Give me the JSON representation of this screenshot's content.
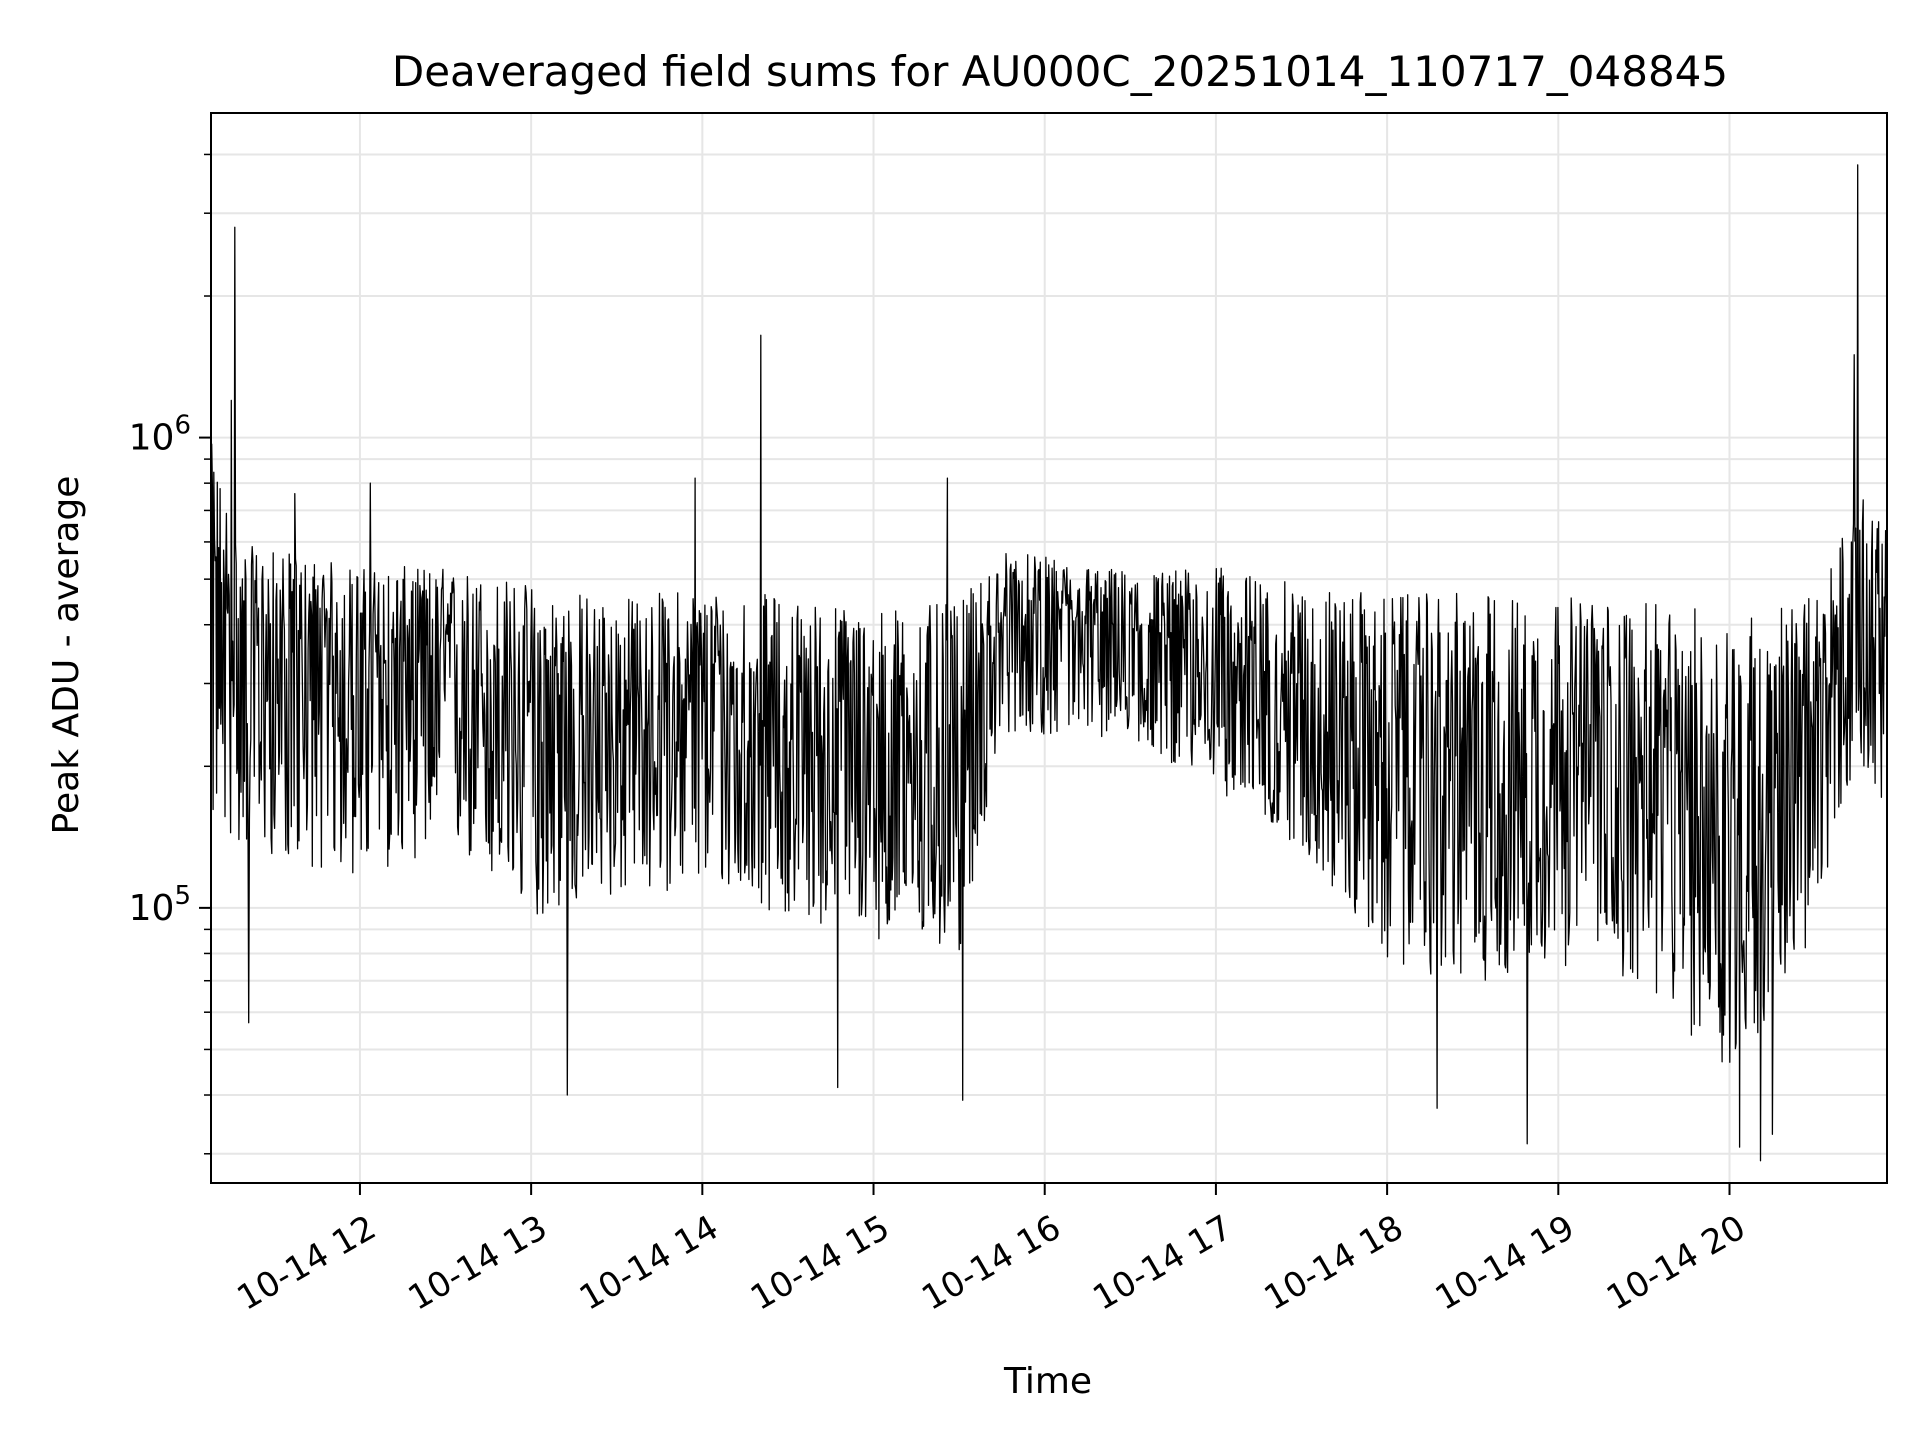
{
  "chart_data": {
    "type": "line",
    "title": "Deaveraged field sums for AU000C_20251014_110717_048845",
    "xlabel": "Time",
    "ylabel": "Peak ADU - average",
    "yscale": "log",
    "ylim": [
      26000,
      4900000
    ],
    "xlim_hours": [
      11.13,
      20.92
    ],
    "grid": true,
    "line_color": "#000000",
    "y_major_ticks": [
      {
        "value": 100000,
        "base": "10",
        "exp": "5"
      },
      {
        "value": 1000000,
        "base": "10",
        "exp": "6"
      }
    ],
    "x_ticks": [
      {
        "value": 12,
        "label": "10-14 12"
      },
      {
        "value": 13,
        "label": "10-14 13"
      },
      {
        "value": 14,
        "label": "10-14 14"
      },
      {
        "value": 15,
        "label": "10-14 15"
      },
      {
        "value": 16,
        "label": "10-14 16"
      },
      {
        "value": 17,
        "label": "10-14 17"
      },
      {
        "value": 18,
        "label": "10-14 18"
      },
      {
        "value": 19,
        "label": "10-14 19"
      },
      {
        "value": 20,
        "label": "10-14 20"
      }
    ],
    "series": [
      {
        "name": "field sums",
        "sample_points": 2400,
        "envelope": [
          {
            "t": 11.13,
            "median": 500000,
            "low": 200000,
            "high": 900000
          },
          {
            "t": 11.3,
            "median": 330000,
            "low": 170000,
            "high": 550000
          },
          {
            "t": 12.0,
            "median": 330000,
            "low": 150000,
            "high": 500000
          },
          {
            "t": 12.5,
            "median": 330000,
            "low": 170000,
            "high": 500000
          },
          {
            "t": 13.0,
            "median": 240000,
            "low": 120000,
            "high": 450000
          },
          {
            "t": 13.5,
            "median": 240000,
            "low": 130000,
            "high": 420000
          },
          {
            "t": 14.0,
            "median": 270000,
            "low": 140000,
            "high": 450000
          },
          {
            "t": 14.5,
            "median": 230000,
            "low": 120000,
            "high": 420000
          },
          {
            "t": 15.0,
            "median": 220000,
            "low": 110000,
            "high": 400000
          },
          {
            "t": 15.5,
            "median": 200000,
            "low": 100000,
            "high": 400000
          },
          {
            "t": 15.75,
            "median": 400000,
            "low": 270000,
            "high": 550000
          },
          {
            "t": 16.5,
            "median": 380000,
            "low": 260000,
            "high": 500000
          },
          {
            "t": 17.0,
            "median": 330000,
            "low": 210000,
            "high": 500000
          },
          {
            "t": 17.5,
            "median": 270000,
            "low": 160000,
            "high": 450000
          },
          {
            "t": 18.0,
            "median": 220000,
            "low": 100000,
            "high": 420000
          },
          {
            "t": 18.5,
            "median": 200000,
            "low": 90000,
            "high": 420000
          },
          {
            "t": 19.0,
            "median": 220000,
            "low": 100000,
            "high": 420000
          },
          {
            "t": 19.5,
            "median": 200000,
            "low": 90000,
            "high": 400000
          },
          {
            "t": 20.0,
            "median": 160000,
            "low": 60000,
            "high": 380000
          },
          {
            "t": 20.5,
            "median": 230000,
            "low": 110000,
            "high": 420000
          },
          {
            "t": 20.75,
            "median": 400000,
            "low": 250000,
            "high": 700000
          },
          {
            "t": 20.92,
            "median": 380000,
            "low": 200000,
            "high": 600000
          }
        ],
        "spikes": [
          {
            "t": 11.27,
            "y": 2800000
          },
          {
            "t": 11.25,
            "y": 1200000
          },
          {
            "t": 11.62,
            "y": 760000
          },
          {
            "t": 12.06,
            "y": 800000
          },
          {
            "t": 13.96,
            "y": 820000
          },
          {
            "t": 14.34,
            "y": 1650000
          },
          {
            "t": 15.43,
            "y": 820000
          },
          {
            "t": 20.75,
            "y": 3800000
          },
          {
            "t": 20.73,
            "y": 1500000
          },
          {
            "t": 11.35,
            "y": 57000
          },
          {
            "t": 13.21,
            "y": 40000
          },
          {
            "t": 14.79,
            "y": 41500
          },
          {
            "t": 15.52,
            "y": 39000
          },
          {
            "t": 18.29,
            "y": 37500
          },
          {
            "t": 18.82,
            "y": 31500
          },
          {
            "t": 20.06,
            "y": 31000
          },
          {
            "t": 20.18,
            "y": 29000
          },
          {
            "t": 20.25,
            "y": 33000
          }
        ]
      }
    ]
  }
}
